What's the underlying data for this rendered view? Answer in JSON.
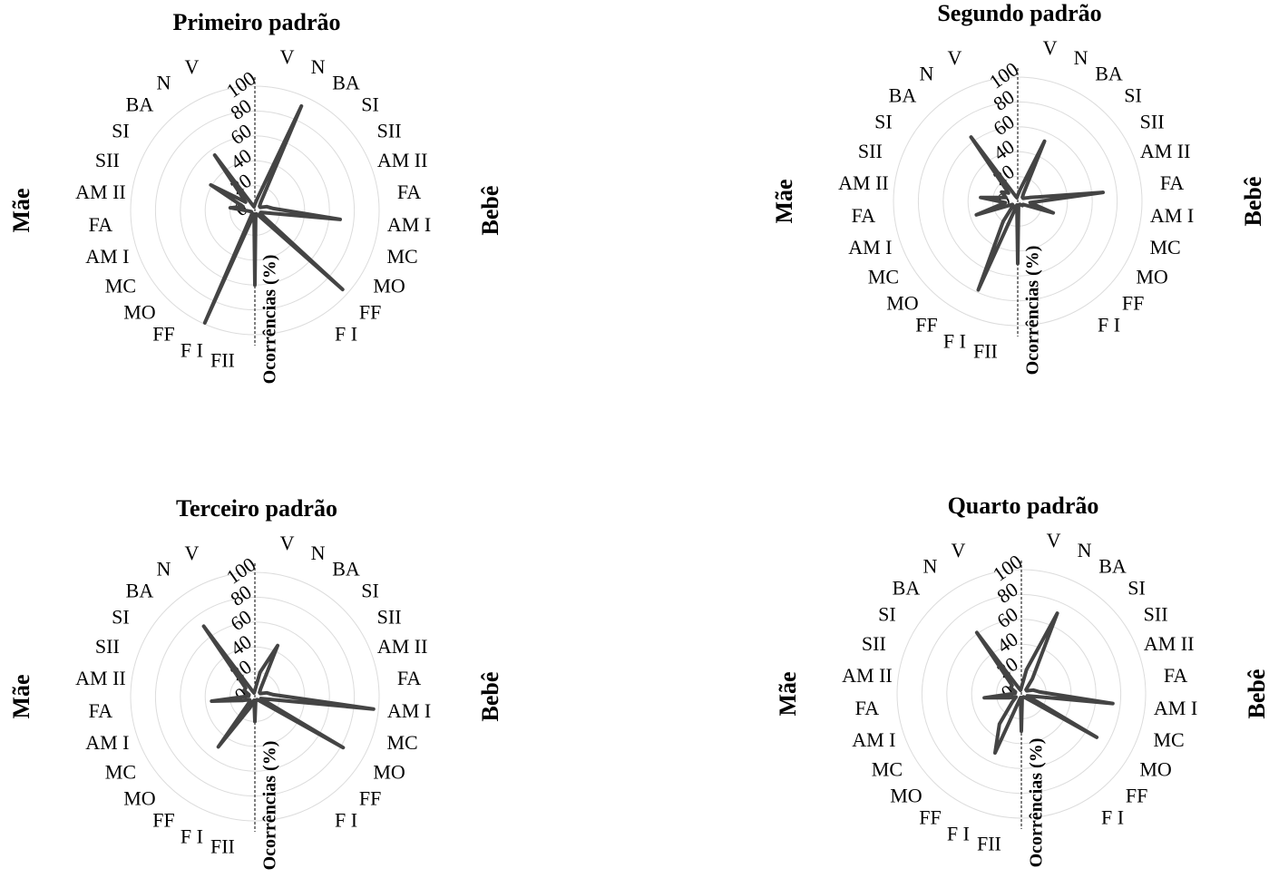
{
  "chart_data": [
    {
      "type": "radar",
      "title": "Primeiro padrão",
      "left_label": "Mãe",
      "right_label": "Bebê",
      "r_label": "Ocorrências (%)",
      "categories": [
        null,
        "V",
        "N",
        "BA",
        "SI",
        "SII",
        "AM II",
        "FA",
        "AM I",
        "MC",
        "MO",
        "FF",
        "F I",
        null,
        null,
        null,
        "FII",
        "F I",
        "FF",
        "MO",
        "MC",
        "AM I",
        "FA",
        "AM II",
        "SII",
        "SI",
        "BA",
        "N",
        "V",
        null
      ],
      "values": [
        5,
        10,
        92,
        8,
        5,
        5,
        10,
        15,
        69,
        5,
        5,
        95,
        5,
        3,
        3,
        60,
        3,
        99,
        5,
        3,
        3,
        3,
        5,
        20,
        10,
        41,
        10,
        55,
        5,
        3
      ],
      "color": "#444444",
      "rlim": [
        0,
        100
      ],
      "rticks": [
        0,
        20,
        40,
        60,
        80,
        100
      ]
    },
    {
      "type": "radar",
      "title": "Segundo padrão",
      "left_label": "Mãe",
      "right_label": "Bebê",
      "r_label": "Ocorrências (%)",
      "categories": [
        null,
        "V",
        "N",
        "BA",
        "SI",
        "SII",
        "AM II",
        "FA",
        "AM I",
        "MC",
        "MO",
        "FF",
        "F I",
        null,
        null,
        null,
        "FII",
        "F I",
        "FF",
        "MO",
        "MC",
        "AM I",
        "FA",
        "AM II",
        "SII",
        "SI",
        "BA",
        "N",
        "V",
        null
      ],
      "values": [
        5,
        10,
        53,
        8,
        5,
        5,
        10,
        69,
        10,
        30,
        5,
        5,
        3,
        3,
        3,
        50,
        3,
        78,
        20,
        5,
        5,
        35,
        10,
        30,
        10,
        15,
        10,
        64,
        5,
        3
      ],
      "color": "#444444",
      "rlim": [
        0,
        100
      ],
      "rticks": [
        0,
        20,
        40,
        60,
        80,
        100
      ]
    },
    {
      "type": "radar",
      "title": "Terceiro padrão",
      "left_label": "Mãe",
      "right_label": "Bebê",
      "r_label": "Ocorrências (%)",
      "categories": [
        null,
        "V",
        "N",
        "BA",
        "SI",
        "SII",
        "AM II",
        "FA",
        "AM I",
        "MC",
        "MO",
        "FF",
        "F I",
        null,
        null,
        null,
        "FII",
        "F I",
        "FF",
        "MO",
        "MC",
        "AM I",
        "FA",
        "AM II",
        "SII",
        "SI",
        "BA",
        "N",
        "V",
        null
      ],
      "values": [
        5,
        20,
        45,
        8,
        5,
        5,
        10,
        15,
        96,
        5,
        82,
        5,
        3,
        3,
        3,
        20,
        3,
        10,
        50,
        5,
        5,
        10,
        35,
        5,
        5,
        10,
        10,
        70,
        5,
        3
      ],
      "color": "#444444",
      "rlim": [
        0,
        100
      ],
      "rticks": [
        0,
        20,
        40,
        60,
        80,
        100
      ]
    },
    {
      "type": "radar",
      "title": "Quarto padrão",
      "left_label": "Mãe",
      "right_label": "Bebê",
      "r_label": "Ocorrências (%)",
      "categories": [
        null,
        "V",
        "N",
        "BA",
        "SI",
        "SII",
        "AM II",
        "FA",
        "AM I",
        "MC",
        "MO",
        "FF",
        "F I",
        null,
        null,
        null,
        "FII",
        "F I",
        "FF",
        "MO",
        "MC",
        "AM I",
        "FA",
        "AM II",
        "SII",
        "SI",
        "BA",
        "N",
        "V",
        null
      ],
      "values": [
        5,
        20,
        71,
        15,
        5,
        5,
        10,
        15,
        74,
        5,
        70,
        5,
        3,
        3,
        3,
        30,
        3,
        52,
        30,
        10,
        5,
        10,
        30,
        5,
        5,
        10,
        10,
        61,
        5,
        3
      ],
      "color": "#444444",
      "rlim": [
        0,
        100
      ],
      "rticks": [
        0,
        20,
        40,
        60,
        80,
        100
      ]
    }
  ]
}
